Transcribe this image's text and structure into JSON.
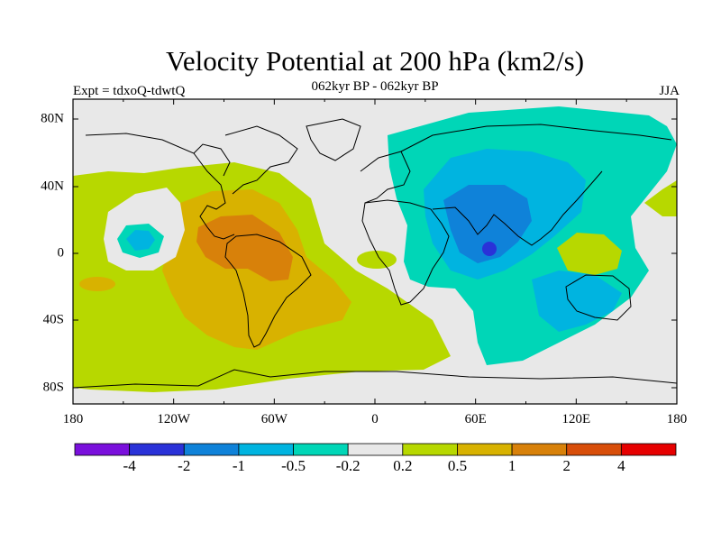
{
  "title": "Velocity Potential at 200 hPa (km2/s)",
  "experiment": "Expt = tdxoQ-tdwtQ",
  "period": "062kyr BP - 062kyr BP",
  "season": "JJA",
  "lon_labels": [
    "180",
    "120W",
    "60W",
    "0",
    "60E",
    "120E",
    "180"
  ],
  "lat_labels": [
    "80N",
    "40N",
    "0",
    "40S",
    "80S"
  ],
  "colorbar": {
    "labels": [
      "-4",
      "-2",
      "-1",
      "-0.5",
      "-0.2",
      "0.2",
      "0.5",
      "1",
      "2",
      "4"
    ],
    "colors": [
      "#7a10dc",
      "#2a32d8",
      "#0f82d9",
      "#00b4e0",
      "#00d6b7",
      "#e8e8e8",
      "#b7d800",
      "#d8b200",
      "#d8810a",
      "#d84e0a",
      "#e60000"
    ]
  },
  "fill_colors": {
    "land_background": "#e8e8e8",
    "level_neg_4": "#2a32d8",
    "level_neg_1": "#0f82d9",
    "level_neg_05": "#00b4e0",
    "level_neg_02": "#00d6b7",
    "level_02": "#b7d800",
    "level_05": "#d8b200",
    "level_1": "#d8810a"
  }
}
